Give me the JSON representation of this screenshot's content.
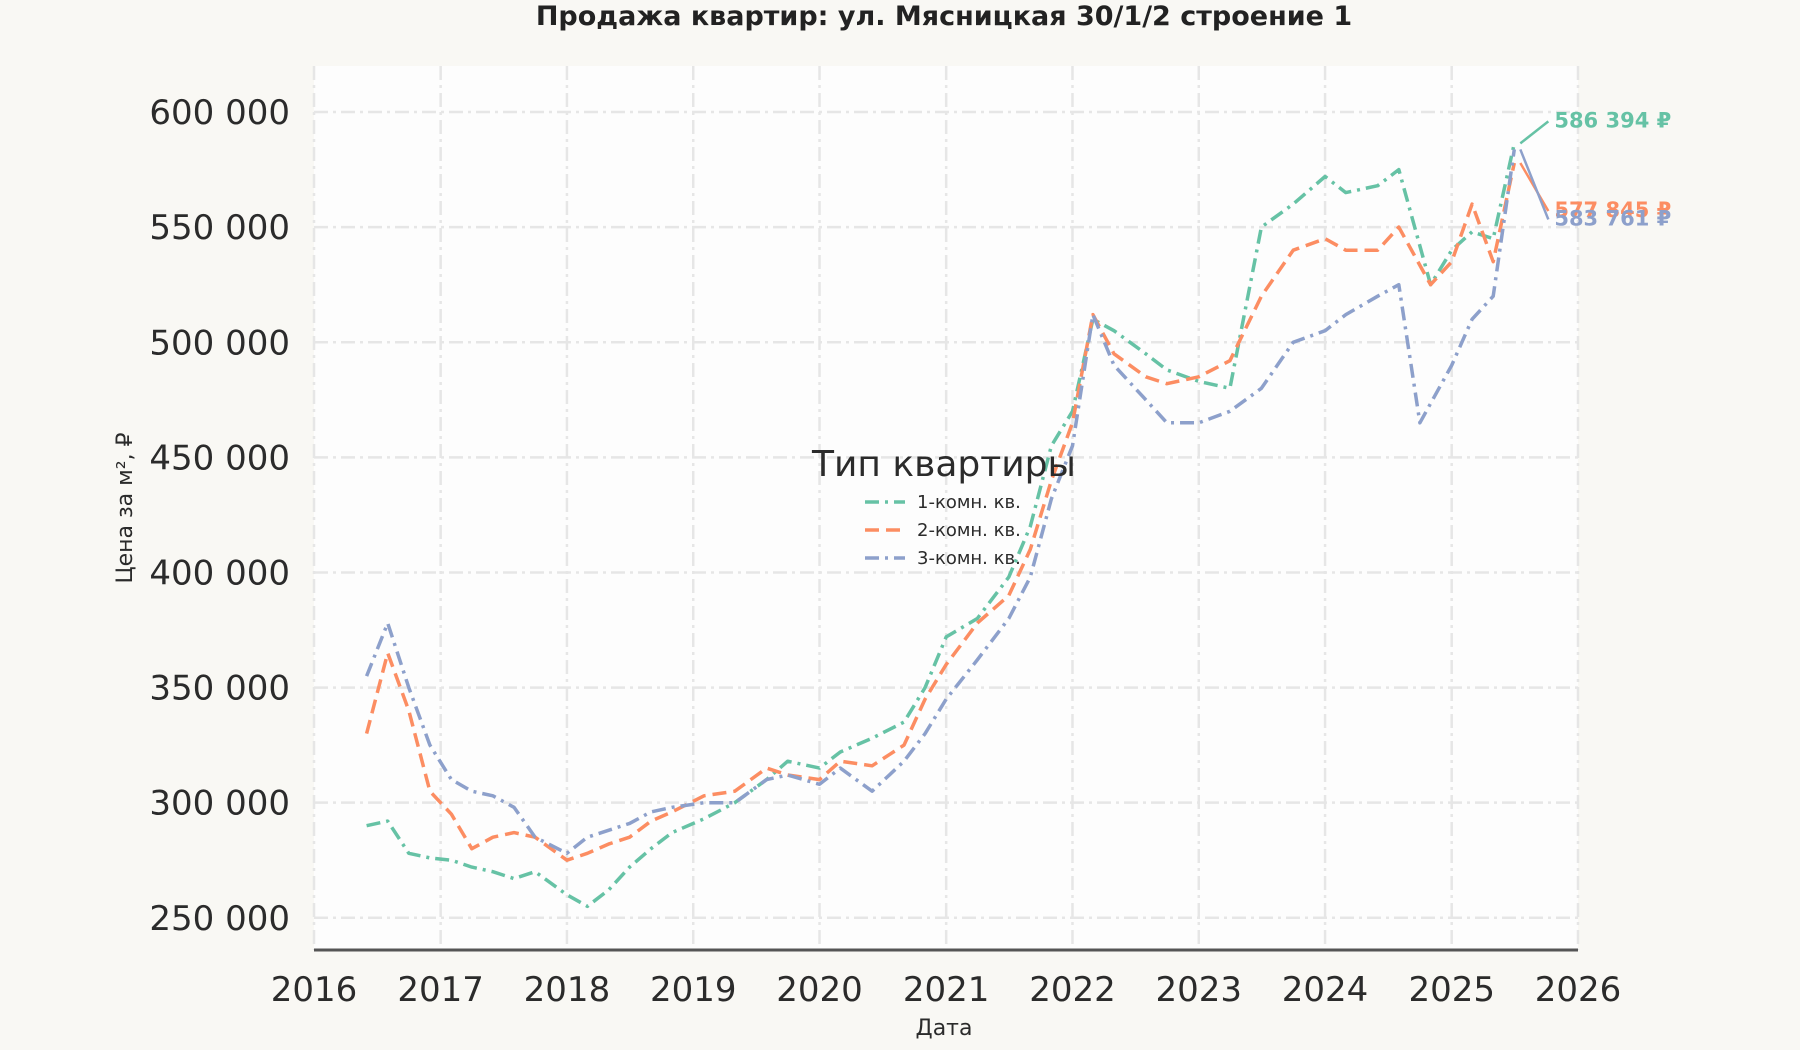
{
  "chart_data": {
    "type": "line",
    "title": "Продажа квартир: ул. Мясницкая 30/1/2 строение 1",
    "xlabel": "Дата",
    "ylabel": "Цена за м², ₽",
    "xlim": [
      "2016-01-01",
      "2026-01-01"
    ],
    "ylim": [
      236000,
      620000
    ],
    "x_ticks": [
      "2016",
      "2017",
      "2018",
      "2019",
      "2020",
      "2021",
      "2022",
      "2023",
      "2024",
      "2025",
      "2026"
    ],
    "y_ticks": [
      {
        "value": 250000,
        "label": "250 000"
      },
      {
        "value": 300000,
        "label": "300 000"
      },
      {
        "value": 350000,
        "label": "350 000"
      },
      {
        "value": 400000,
        "label": "400 000"
      },
      {
        "value": 450000,
        "label": "450 000"
      },
      {
        "value": 500000,
        "label": "500 000"
      },
      {
        "value": 550000,
        "label": "550 000"
      },
      {
        "value": 600000,
        "label": "600 000"
      }
    ],
    "grid": true,
    "legend": {
      "title": "Тип квартиры",
      "placement": "center"
    },
    "series": [
      {
        "name": "1-комн. кв.",
        "color": "#66c2a5",
        "dash": "dashdot",
        "end_label": "586 394 ₽",
        "points": [
          [
            "2016-06-01",
            290000
          ],
          [
            "2016-08-01",
            292000
          ],
          [
            "2016-10-01",
            278000
          ],
          [
            "2016-12-01",
            276000
          ],
          [
            "2017-02-01",
            275000
          ],
          [
            "2017-04-01",
            272000
          ],
          [
            "2017-06-01",
            270000
          ],
          [
            "2017-08-01",
            267000
          ],
          [
            "2017-10-01",
            270000
          ],
          [
            "2018-01-01",
            260000
          ],
          [
            "2018-03-01",
            255000
          ],
          [
            "2018-05-01",
            262000
          ],
          [
            "2018-07-01",
            272000
          ],
          [
            "2018-09-01",
            280000
          ],
          [
            "2018-11-01",
            287000
          ],
          [
            "2019-02-01",
            293000
          ],
          [
            "2019-05-01",
            300000
          ],
          [
            "2019-08-01",
            310000
          ],
          [
            "2019-10-01",
            318000
          ],
          [
            "2020-01-01",
            315000
          ],
          [
            "2020-03-01",
            322000
          ],
          [
            "2020-06-01",
            328000
          ],
          [
            "2020-09-01",
            335000
          ],
          [
            "2020-11-01",
            350000
          ],
          [
            "2021-01-01",
            372000
          ],
          [
            "2021-04-01",
            380000
          ],
          [
            "2021-07-01",
            398000
          ],
          [
            "2021-09-01",
            420000
          ],
          [
            "2021-11-01",
            455000
          ],
          [
            "2022-01-01",
            470000
          ],
          [
            "2022-03-01",
            510000
          ],
          [
            "2022-05-01",
            505000
          ],
          [
            "2022-08-01",
            495000
          ],
          [
            "2022-10-01",
            488000
          ],
          [
            "2023-01-01",
            483000
          ],
          [
            "2023-04-01",
            480000
          ],
          [
            "2023-07-01",
            550000
          ],
          [
            "2023-10-01",
            560000
          ],
          [
            "2024-01-01",
            572000
          ],
          [
            "2024-03-01",
            565000
          ],
          [
            "2024-06-01",
            568000
          ],
          [
            "2024-08-01",
            575000
          ],
          [
            "2024-11-01",
            525000
          ],
          [
            "2025-01-01",
            540000
          ],
          [
            "2025-03-01",
            548000
          ],
          [
            "2025-05-01",
            545000
          ],
          [
            "2025-07-01",
            586394
          ]
        ]
      },
      {
        "name": "2-комн. кв.",
        "color": "#fc8d62",
        "dash": "dashed",
        "end_label": "577 845 ₽",
        "points": [
          [
            "2016-06-01",
            330000
          ],
          [
            "2016-08-01",
            365000
          ],
          [
            "2016-10-01",
            340000
          ],
          [
            "2016-12-01",
            305000
          ],
          [
            "2017-02-01",
            295000
          ],
          [
            "2017-04-01",
            280000
          ],
          [
            "2017-06-01",
            285000
          ],
          [
            "2017-08-01",
            287000
          ],
          [
            "2017-10-01",
            285000
          ],
          [
            "2018-01-01",
            275000
          ],
          [
            "2018-03-01",
            278000
          ],
          [
            "2018-05-01",
            282000
          ],
          [
            "2018-07-01",
            285000
          ],
          [
            "2018-09-01",
            292000
          ],
          [
            "2018-11-01",
            296000
          ],
          [
            "2019-02-01",
            303000
          ],
          [
            "2019-05-01",
            305000
          ],
          [
            "2019-08-01",
            315000
          ],
          [
            "2019-10-01",
            312000
          ],
          [
            "2020-01-01",
            310000
          ],
          [
            "2020-03-01",
            318000
          ],
          [
            "2020-06-01",
            316000
          ],
          [
            "2020-09-01",
            325000
          ],
          [
            "2020-11-01",
            345000
          ],
          [
            "2021-01-01",
            360000
          ],
          [
            "2021-04-01",
            378000
          ],
          [
            "2021-07-01",
            390000
          ],
          [
            "2021-09-01",
            410000
          ],
          [
            "2021-11-01",
            440000
          ],
          [
            "2022-01-01",
            465000
          ],
          [
            "2022-03-01",
            512000
          ],
          [
            "2022-05-01",
            495000
          ],
          [
            "2022-08-01",
            485000
          ],
          [
            "2022-10-01",
            482000
          ],
          [
            "2023-01-01",
            485000
          ],
          [
            "2023-04-01",
            492000
          ],
          [
            "2023-07-01",
            520000
          ],
          [
            "2023-10-01",
            540000
          ],
          [
            "2024-01-01",
            545000
          ],
          [
            "2024-03-01",
            540000
          ],
          [
            "2024-06-01",
            540000
          ],
          [
            "2024-08-01",
            550000
          ],
          [
            "2024-11-01",
            525000
          ],
          [
            "2025-01-01",
            535000
          ],
          [
            "2025-03-01",
            560000
          ],
          [
            "2025-05-01",
            535000
          ],
          [
            "2025-07-01",
            577845
          ]
        ]
      },
      {
        "name": "3-комн. кв.",
        "color": "#8da0cb",
        "dash": "dashdot",
        "end_label": "583 761 ₽",
        "points": [
          [
            "2016-06-01",
            355000
          ],
          [
            "2016-08-01",
            378000
          ],
          [
            "2016-10-01",
            350000
          ],
          [
            "2016-12-01",
            325000
          ],
          [
            "2017-02-01",
            310000
          ],
          [
            "2017-04-01",
            305000
          ],
          [
            "2017-06-01",
            303000
          ],
          [
            "2017-08-01",
            298000
          ],
          [
            "2017-10-01",
            285000
          ],
          [
            "2018-01-01",
            278000
          ],
          [
            "2018-03-01",
            285000
          ],
          [
            "2018-05-01",
            288000
          ],
          [
            "2018-07-01",
            291000
          ],
          [
            "2018-09-01",
            296000
          ],
          [
            "2018-11-01",
            298000
          ],
          [
            "2019-02-01",
            300000
          ],
          [
            "2019-05-01",
            300000
          ],
          [
            "2019-08-01",
            310000
          ],
          [
            "2019-10-01",
            312000
          ],
          [
            "2020-01-01",
            308000
          ],
          [
            "2020-03-01",
            315000
          ],
          [
            "2020-06-01",
            305000
          ],
          [
            "2020-09-01",
            318000
          ],
          [
            "2020-11-01",
            330000
          ],
          [
            "2021-01-01",
            345000
          ],
          [
            "2021-04-01",
            362000
          ],
          [
            "2021-07-01",
            380000
          ],
          [
            "2021-09-01",
            398000
          ],
          [
            "2021-11-01",
            432000
          ],
          [
            "2022-01-01",
            455000
          ],
          [
            "2022-03-01",
            512000
          ],
          [
            "2022-05-01",
            490000
          ],
          [
            "2022-08-01",
            475000
          ],
          [
            "2022-10-01",
            465000
          ],
          [
            "2023-01-01",
            465000
          ],
          [
            "2023-04-01",
            470000
          ],
          [
            "2023-07-01",
            480000
          ],
          [
            "2023-10-01",
            500000
          ],
          [
            "2024-01-01",
            505000
          ],
          [
            "2024-03-01",
            512000
          ],
          [
            "2024-06-01",
            520000
          ],
          [
            "2024-08-01",
            525000
          ],
          [
            "2024-10-01",
            465000
          ],
          [
            "2025-01-01",
            490000
          ],
          [
            "2025-03-01",
            510000
          ],
          [
            "2025-05-01",
            520000
          ],
          [
            "2025-07-01",
            583761
          ]
        ]
      }
    ]
  }
}
